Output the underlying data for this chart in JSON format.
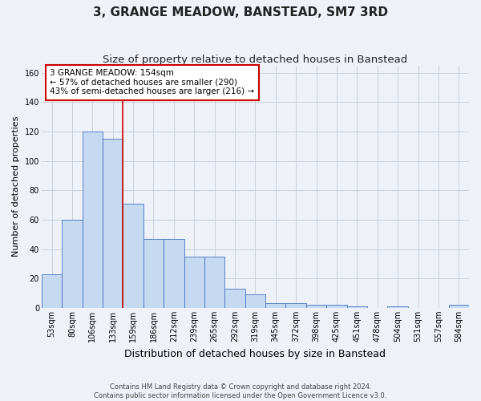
{
  "title": "3, GRANGE MEADOW, BANSTEAD, SM7 3RD",
  "subtitle": "Size of property relative to detached houses in Banstead",
  "xlabel": "Distribution of detached houses by size in Banstead",
  "ylabel": "Number of detached properties",
  "footer_line1": "Contains HM Land Registry data © Crown copyright and database right 2024.",
  "footer_line2": "Contains public sector information licensed under the Open Government Licence v3.0.",
  "bar_labels": [
    "53sqm",
    "80sqm",
    "106sqm",
    "133sqm",
    "159sqm",
    "186sqm",
    "212sqm",
    "239sqm",
    "265sqm",
    "292sqm",
    "319sqm",
    "345sqm",
    "372sqm",
    "398sqm",
    "425sqm",
    "451sqm",
    "478sqm",
    "504sqm",
    "531sqm",
    "557sqm",
    "584sqm"
  ],
  "bar_values": [
    23,
    60,
    120,
    115,
    71,
    47,
    47,
    35,
    35,
    13,
    9,
    3,
    3,
    2,
    2,
    1,
    0,
    1,
    0,
    0,
    2
  ],
  "bar_color": "#c5d9f0",
  "bar_edge_color": "#4472c4",
  "grid_color": "#c8d0dc",
  "background_color": "#eef2f8",
  "vline_color": "#cc0000",
  "annotation_text": "3 GRANGE MEADOW: 154sqm\n← 57% of detached houses are smaller (290)\n43% of semi-detached houses are larger (216) →",
  "annotation_box_color": "#ffffff",
  "annotation_box_edge": "#cc0000",
  "ylim": [
    0,
    165
  ],
  "yticks": [
    0,
    20,
    40,
    60,
    80,
    100,
    120,
    140,
    160
  ],
  "title_fontsize": 11,
  "subtitle_fontsize": 9.5,
  "xlabel_fontsize": 9,
  "ylabel_fontsize": 8,
  "tick_fontsize": 7,
  "annotation_fontsize": 7.5
}
